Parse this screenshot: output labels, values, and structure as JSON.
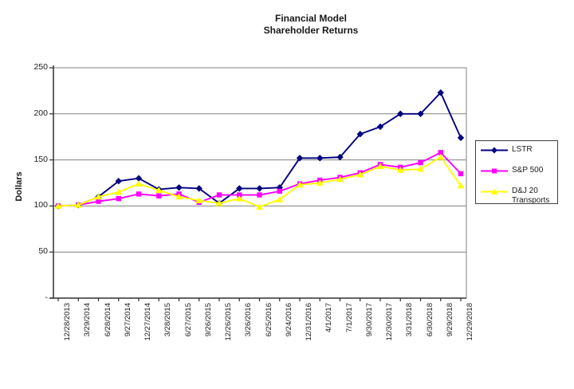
{
  "chart_data": {
    "type": "line",
    "title": "Financial Model",
    "subtitle": "Shareholder Returns",
    "ylabel": "Dollars",
    "ylim": [
      0,
      250
    ],
    "ytick_step": 50,
    "grid": true,
    "legend_position": "right",
    "y_ticks": [
      {
        "value": 250,
        "label": "250"
      },
      {
        "value": 200,
        "label": "200"
      },
      {
        "value": 150,
        "label": "150"
      },
      {
        "value": 100,
        "label": "100"
      },
      {
        "value": 50,
        "label": "50"
      },
      {
        "value": 0,
        "label": "-"
      }
    ],
    "categories": [
      "12/28/2013",
      "3/29/2014",
      "6/28/2014",
      "9/27/2014",
      "12/27/2014",
      "3/28/2015",
      "6/27/2015",
      "9/26/2015",
      "12/26/2015",
      "3/26/2016",
      "6/25/2016",
      "9/24/2016",
      "12/31/2016",
      "4/1/2017",
      "7/1/2017",
      "9/30/2017",
      "12/30/2017",
      "3/31/2018",
      "6/30/2018",
      "9/29/2018",
      "12/29/2018"
    ],
    "series": [
      {
        "name": "LSTR",
        "color": "#000080",
        "marker": "diamond",
        "values": [
          100,
          101,
          110,
          127,
          130,
          118,
          120,
          119,
          103,
          119,
          119,
          120,
          152,
          152,
          153,
          178,
          186,
          200,
          200,
          223,
          174
        ]
      },
      {
        "name": "S&P 500",
        "color": "#FF00FF",
        "marker": "square",
        "values": [
          100,
          101,
          105,
          108,
          113,
          111,
          113,
          104,
          112,
          112,
          112,
          116,
          124,
          128,
          131,
          136,
          145,
          142,
          147,
          158,
          135
        ]
      },
      {
        "name": "D&J 20 Transports",
        "color": "#FFFF00",
        "marker": "triangle",
        "values": [
          100,
          101,
          110,
          115,
          124,
          117,
          110,
          106,
          103,
          108,
          99,
          107,
          123,
          125,
          129,
          134,
          143,
          139,
          140,
          153,
          122
        ]
      }
    ]
  }
}
